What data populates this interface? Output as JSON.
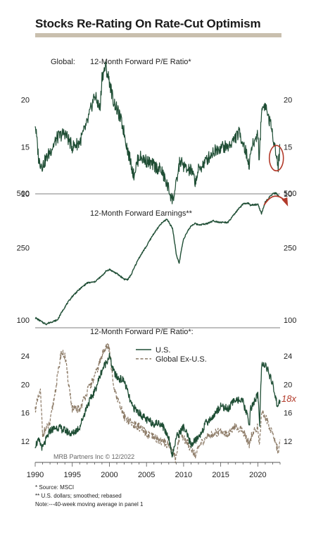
{
  "title": "Stocks Re-Rating On Rate-Cut Optimism",
  "footnotes": [
    "*  Source: MSCI",
    "** U.S. dollars; smoothed; rebased",
    "Note:---40-week moving average in panel 1"
  ],
  "colors": {
    "title_rule": "#c9bfae",
    "us_line": "#1f4e35",
    "exus_line": "#8c7a66",
    "annotation": "#b23a2a",
    "axis": "#555555"
  },
  "chart_data": [
    {
      "type": "line",
      "panel_prefix": "Global:",
      "title": "12-Month Forward P/E Ratio*",
      "xlim": [
        1990,
        2023
      ],
      "ylim": [
        10,
        25
      ],
      "yticks": [
        10,
        15,
        20
      ],
      "yticks_right": [
        10,
        15,
        20
      ],
      "annotation": "circle",
      "series": [
        {
          "x": [
            1990,
            1990.5,
            1991,
            1992,
            1993,
            1994,
            1995,
            1996,
            1997,
            1998,
            1998.75,
            1999,
            1999.5,
            2000,
            2000.5,
            2001,
            2001.5,
            2002,
            2002.5,
            2003,
            2003.25,
            2004,
            2005,
            2006,
            2007,
            2008,
            2008.5,
            2008.9,
            2009.5,
            2010,
            2010.5,
            2011,
            2011.6,
            2012,
            2013,
            2014,
            2015,
            2016,
            2016.5,
            2017,
            2017.5,
            2018,
            2018.9,
            2019,
            2019.5,
            2020,
            2020.2,
            2020.5,
            2021,
            2021.5,
            2022,
            2022.5,
            2022.75,
            2023
          ],
          "values": [
            17.5,
            13.5,
            13.0,
            14.5,
            16.0,
            16.5,
            15.0,
            15.5,
            17.5,
            20.5,
            19.0,
            22.5,
            23.5,
            22.0,
            20.0,
            19.0,
            18.0,
            16.5,
            14.5,
            13.0,
            12.0,
            14.0,
            13.5,
            13.0,
            12.5,
            10.5,
            9.3,
            10.5,
            13.5,
            13.0,
            12.5,
            12.5,
            11.3,
            12.5,
            13.5,
            14.5,
            15.0,
            15.0,
            15.5,
            16.0,
            16.5,
            15.5,
            13.0,
            14.5,
            15.5,
            16.5,
            13.5,
            19.0,
            19.5,
            18.0,
            16.5,
            14.0,
            13.0,
            15.0
          ]
        }
      ]
    },
    {
      "type": "line",
      "title": "12-Month Forward Earnings**",
      "xlim": [
        1990,
        2023
      ],
      "ylim": [
        100,
        500
      ],
      "log_scale": true,
      "yticks": [
        100,
        250,
        500
      ],
      "yticks_right": [
        100,
        250,
        500
      ],
      "annotation": "arrow",
      "series": [
        {
          "x": [
            1990,
            1991,
            1991.5,
            1992,
            1993,
            1994,
            1995,
            1996,
            1997,
            1998,
            1999,
            1999.5,
            2000,
            2001,
            2002,
            2002.5,
            2003,
            2004,
            2005,
            2006,
            2007,
            2007.75,
            2008.5,
            2009,
            2009.4,
            2010,
            2011,
            2011.5,
            2012,
            2013,
            2014,
            2015,
            2016,
            2017,
            2018,
            2018.7,
            2019,
            2019.5,
            2020,
            2020.5,
            2021,
            2022,
            2022.5,
            2023
          ],
          "values": [
            103,
            97,
            95,
            97,
            100,
            118,
            135,
            148,
            160,
            162,
            175,
            185,
            190,
            180,
            168,
            167,
            180,
            220,
            255,
            300,
            340,
            360,
            320,
            230,
            205,
            280,
            330,
            340,
            335,
            338,
            352,
            345,
            345,
            390,
            435,
            440,
            430,
            430,
            435,
            385,
            445,
            495,
            500,
            470
          ]
        }
      ]
    },
    {
      "type": "line",
      "title": "12-Month Forward P/E Ratio*:",
      "xlim": [
        1990,
        2023
      ],
      "ylim": [
        9,
        26
      ],
      "yticks": [
        12,
        16,
        20,
        24
      ],
      "yticks_right": [
        12,
        16,
        20,
        24
      ],
      "annotation_text": "18x",
      "xticks": [
        1990,
        1995,
        2000,
        2005,
        2010,
        2015,
        2020
      ],
      "legend_position": "top-center",
      "series": [
        {
          "name": "U.S.",
          "x": [
            1990,
            1990.5,
            1991,
            1992,
            1993,
            1994,
            1995,
            1996,
            1997,
            1998,
            1999,
            1999.5,
            2000,
            2000.5,
            2001,
            2002,
            2003,
            2004,
            2005,
            2006,
            2007,
            2008,
            2008.5,
            2009,
            2010,
            2011,
            2012,
            2013,
            2014,
            2015,
            2016,
            2017,
            2018,
            2018.9,
            2019,
            2020,
            2020.25,
            2020.5,
            2021,
            2022,
            2022.75,
            2023
          ],
          "values": [
            11.5,
            12.0,
            11.0,
            13.5,
            14.0,
            13.5,
            13.0,
            14.0,
            17.0,
            19.0,
            22.0,
            23.0,
            24.0,
            22.0,
            21.0,
            20.5,
            17.0,
            16.0,
            15.0,
            14.5,
            14.5,
            12.5,
            10.0,
            12.5,
            14.0,
            11.5,
            12.5,
            14.5,
            15.5,
            17.0,
            16.5,
            18.0,
            17.5,
            14.5,
            16.5,
            18.5,
            14.5,
            22.5,
            23.0,
            20.0,
            16.5,
            18.0
          ]
        },
        {
          "name": "Global Ex-U.S.",
          "x": [
            1990,
            1990.7,
            1991,
            1992,
            1993,
            1993.5,
            1994,
            1995,
            1996,
            1997,
            1998,
            1999,
            1999.5,
            2000,
            2000.5,
            2001,
            2002,
            2003,
            2004,
            2005,
            2006,
            2007,
            2008,
            2008.9,
            2009.5,
            2010,
            2011,
            2011.7,
            2012,
            2013,
            2014,
            2015,
            2016,
            2017,
            2018,
            2018.9,
            2019,
            2020,
            2020.2,
            2020.5,
            2021,
            2022,
            2022.75,
            2023
          ],
          "values": [
            16.5,
            19.0,
            13.0,
            14.5,
            21.0,
            24.5,
            24.0,
            16.5,
            16.5,
            19.0,
            21.0,
            24.0,
            25.5,
            25.0,
            20.0,
            18.0,
            15.5,
            14.5,
            14.0,
            13.0,
            12.5,
            12.0,
            11.5,
            9.5,
            13.0,
            12.5,
            11.0,
            10.0,
            11.0,
            12.5,
            13.0,
            13.5,
            13.0,
            14.0,
            13.5,
            11.5,
            12.5,
            14.0,
            11.5,
            16.0,
            15.5,
            13.0,
            10.5,
            12.0
          ]
        }
      ]
    }
  ],
  "credit": "MRB Partners Inc © 12/2022"
}
